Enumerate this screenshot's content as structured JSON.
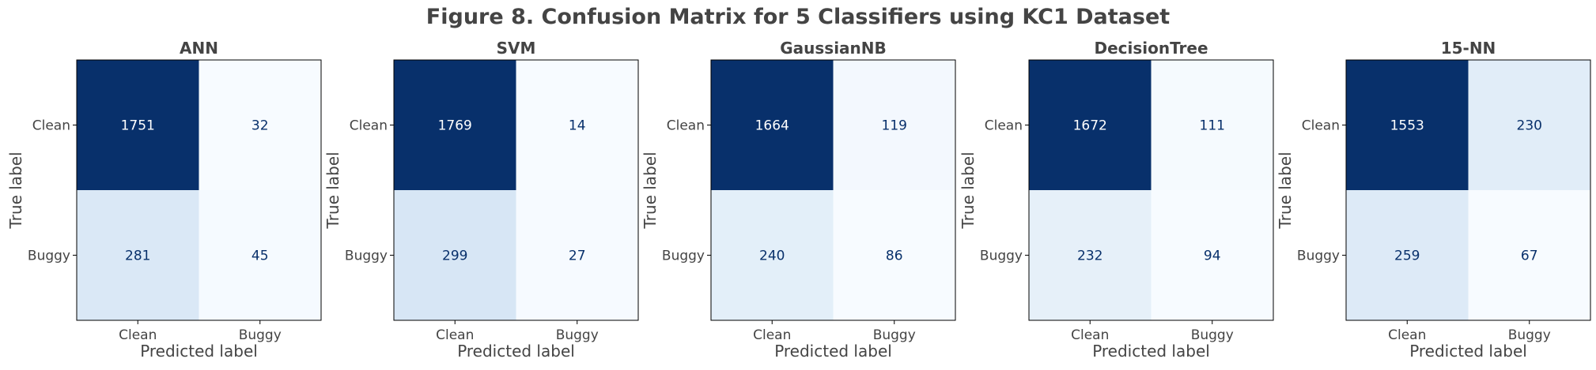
{
  "figure": {
    "title": "Figure 8. Confusion Matrix for 5 Classifiers using KC1 Dataset"
  },
  "colors": {
    "text": "#444444",
    "cell_text_dark_bg": "#ffffff",
    "cell_text_light_bg": "#08306b",
    "colormap": "Blues"
  },
  "chart_data": [
    {
      "type": "heatmap",
      "title": "ANN",
      "xlabel": "Predicted label",
      "ylabel": "True label",
      "x_categories": [
        "Clean",
        "Buggy"
      ],
      "y_categories": [
        "Clean",
        "Buggy"
      ],
      "values": [
        [
          1751,
          32
        ],
        [
          281,
          45
        ]
      ]
    },
    {
      "type": "heatmap",
      "title": "SVM",
      "xlabel": "Predicted label",
      "ylabel": "True label",
      "x_categories": [
        "Clean",
        "Buggy"
      ],
      "y_categories": [
        "Clean",
        "Buggy"
      ],
      "values": [
        [
          1769,
          14
        ],
        [
          299,
          27
        ]
      ]
    },
    {
      "type": "heatmap",
      "title": "GaussianNB",
      "xlabel": "Predicted label",
      "ylabel": "True label",
      "x_categories": [
        "Clean",
        "Buggy"
      ],
      "y_categories": [
        "Clean",
        "Buggy"
      ],
      "values": [
        [
          1664,
          119
        ],
        [
          240,
          86
        ]
      ]
    },
    {
      "type": "heatmap",
      "title": "DecisionTree",
      "xlabel": "Predicted label",
      "ylabel": "True label",
      "x_categories": [
        "Clean",
        "Buggy"
      ],
      "y_categories": [
        "Clean",
        "Buggy"
      ],
      "values": [
        [
          1672,
          111
        ],
        [
          232,
          94
        ]
      ]
    },
    {
      "type": "heatmap",
      "title": "15-NN",
      "xlabel": "Predicted label",
      "ylabel": "True label",
      "x_categories": [
        "Clean",
        "Buggy"
      ],
      "y_categories": [
        "Clean",
        "Buggy"
      ],
      "values": [
        [
          1553,
          230
        ],
        [
          259,
          67
        ]
      ]
    }
  ]
}
